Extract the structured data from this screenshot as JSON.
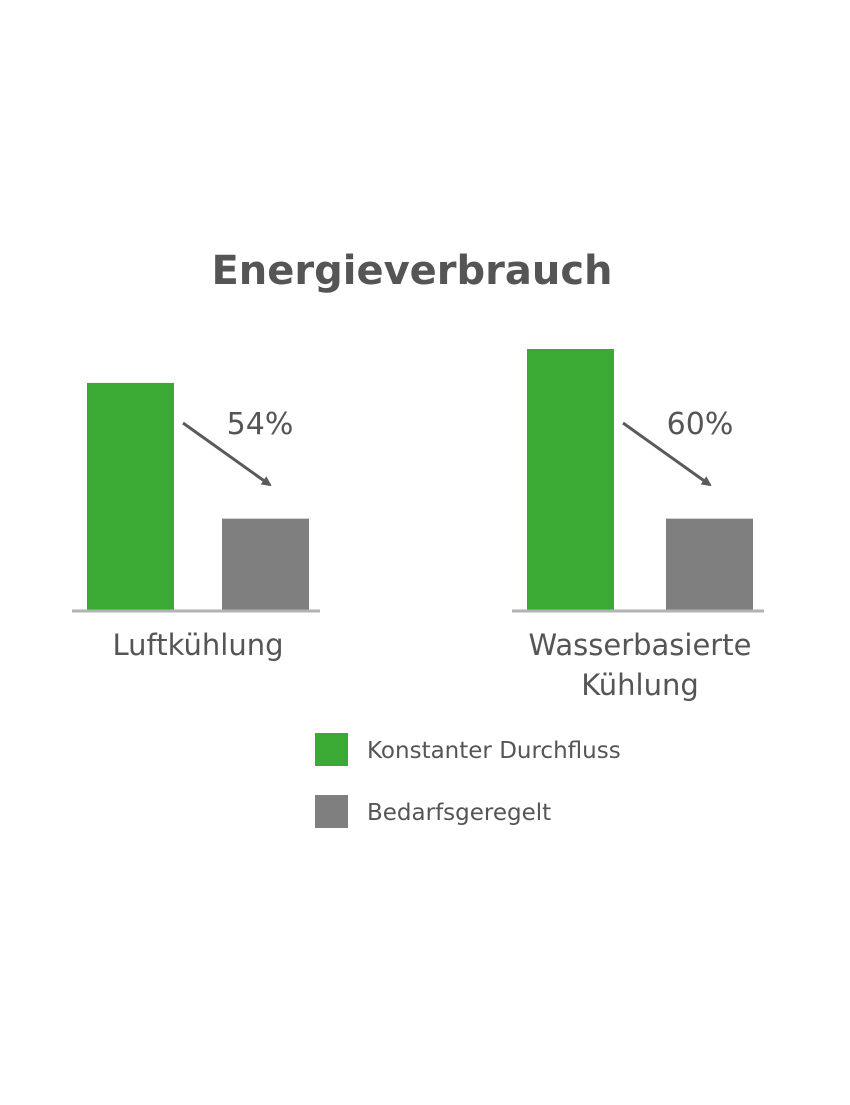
{
  "chart_data": {
    "type": "bar",
    "title": "Energieverbrauch",
    "categories": [
      [
        "Luftkühlung"
      ],
      [
        "Wasserbasierte",
        "Kühlung"
      ]
    ],
    "series": [
      {
        "name": "Konstanter Durchfluss",
        "color": "#3aaa35",
        "values": [
          87,
          100
        ]
      },
      {
        "name": "Bedarfsgeregelt",
        "color": "#7f7f7f",
        "values": [
          35,
          35
        ]
      }
    ],
    "annotations": [
      "54%",
      "60%"
    ],
    "ylim": [
      0,
      100
    ],
    "axis_values_shown": false,
    "grid": false,
    "legend_position": "bottom"
  }
}
